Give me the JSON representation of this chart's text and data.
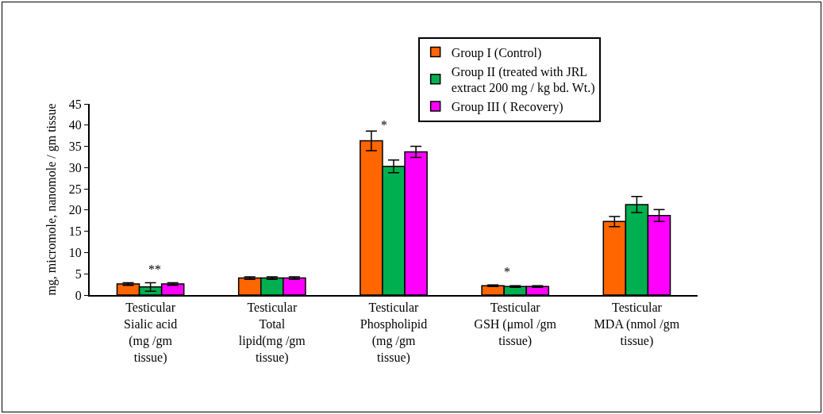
{
  "chart_data": {
    "type": "bar",
    "ylabel": "mg, micromole, nanomole / gm tissue",
    "categories": [
      "Testicular Sialic acid (mg /gm tissue)",
      "Testicular Total lipid(mg /gm tissue)",
      "Testicular Phospholipid (mg /gm tissue)",
      "Testicular GSH (μmol /gm tissue)",
      "Testicular MDA (nmol /gm tissue)"
    ],
    "series": [
      {
        "name": "Group I (Control)",
        "color": "#ff6600",
        "values": [
          2.6,
          4.0,
          36.3,
          2.2,
          17.3
        ],
        "errors": [
          0.3,
          0.3,
          2.3,
          0.2,
          1.2
        ]
      },
      {
        "name": "Group II (treated with JRL extract 200 mg / kg bd. Wt.)",
        "color": "#00b050",
        "values": [
          1.9,
          4.0,
          30.3,
          2.0,
          21.3
        ],
        "errors": [
          1.0,
          0.3,
          1.5,
          0.2,
          1.9
        ]
      },
      {
        "name": "Group III ( Recovery)",
        "color": "#ff00ff",
        "values": [
          2.6,
          4.0,
          33.7,
          2.0,
          18.7
        ],
        "errors": [
          0.3,
          0.3,
          1.3,
          0.2,
          1.4
        ]
      }
    ],
    "ylim": [
      0,
      45
    ],
    "yticks": [
      0,
      5,
      10,
      15,
      20,
      25,
      30,
      35,
      40,
      45
    ],
    "grid": false,
    "legend": "top right",
    "annotations": [
      "**",
      "*",
      "*"
    ]
  }
}
